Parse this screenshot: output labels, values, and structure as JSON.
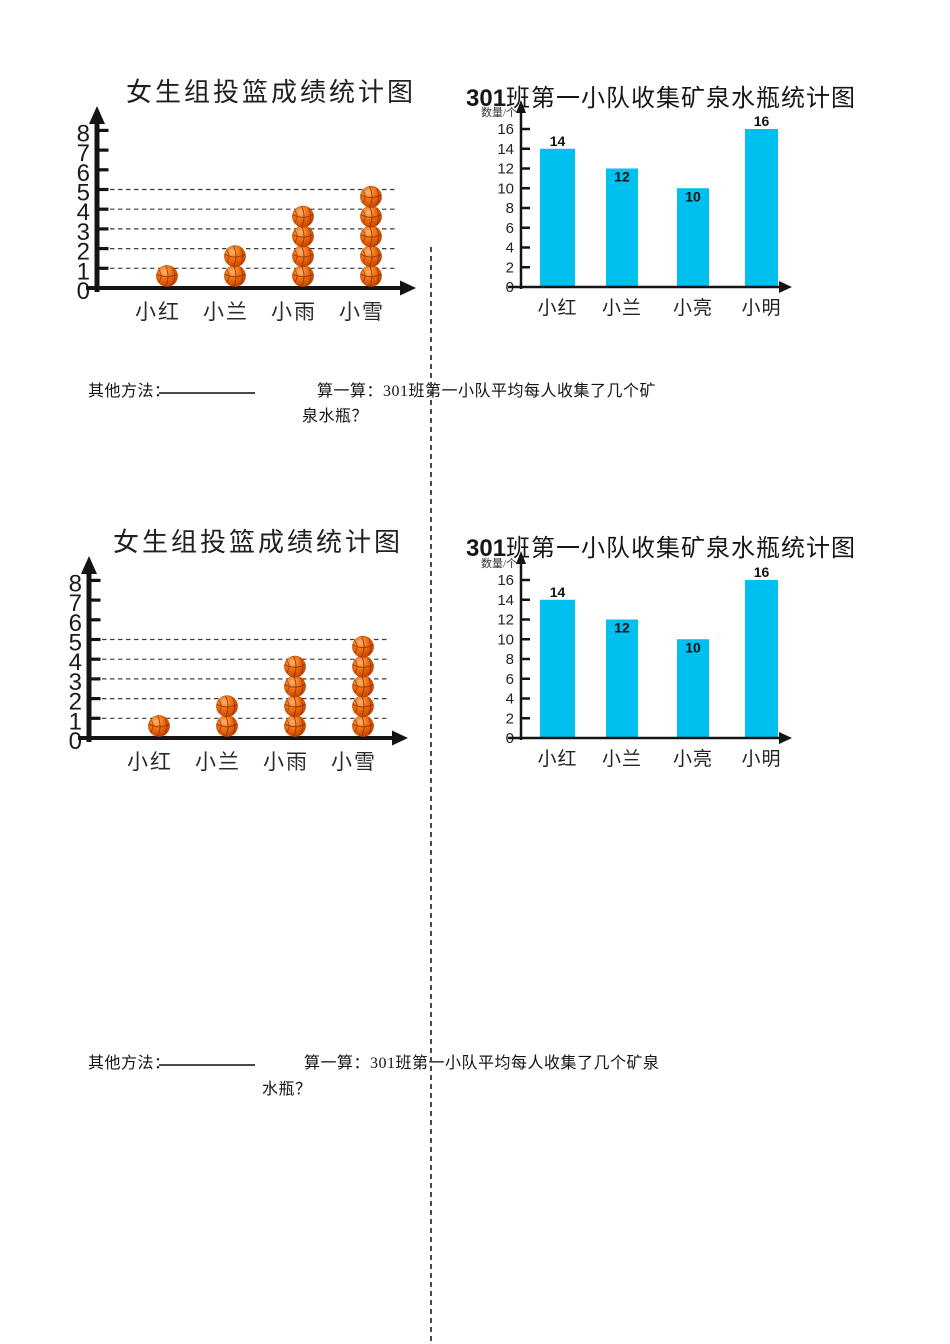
{
  "page": {
    "background": "#ffffff",
    "cut_line_color": "#4a4a4a"
  },
  "sections": [
    {
      "pictograph": {
        "title": "女生组投篮成绩统计图",
        "y_ticks": [
          "8",
          "7",
          "6",
          "5",
          "4",
          "3",
          "2",
          "1",
          "0"
        ],
        "gridline_levels": [
          1,
          2,
          3,
          4,
          5
        ],
        "categories": [
          "小红",
          "小兰",
          "小雨",
          "小雪"
        ],
        "values": [
          1,
          2,
          4,
          5
        ],
        "ball_color": "#e8600f"
      },
      "barchart": {
        "title_prefix": "301",
        "title_rest": "班第一小队收集矿泉水瓶统计图",
        "y_axis_label": "数量/个",
        "y_ticks": [
          "16",
          "14",
          "12",
          "10",
          "8",
          "6",
          "4",
          "2",
          "0"
        ],
        "categories": [
          "小红",
          "小兰",
          "小亮",
          "小明"
        ],
        "values": [
          14,
          12,
          10,
          16
        ],
        "value_label_placement": [
          "above",
          "inside",
          "inside",
          "above"
        ],
        "bar_color": "#00c0f0"
      },
      "question": {
        "other_method_label": "其他方法：",
        "calc_line1": "算一算：301班第一小队平均每人收集了几个矿",
        "calc_line2": "泉水瓶？"
      }
    },
    {
      "pictograph": {
        "title": "女生组投篮成绩统计图",
        "y_ticks": [
          "8",
          "7",
          "6",
          "5",
          "4",
          "3",
          "2",
          "1",
          "0"
        ],
        "gridline_levels": [
          1,
          2,
          3,
          4,
          5
        ],
        "categories": [
          "小红",
          "小兰",
          "小雨",
          "小雪"
        ],
        "values": [
          1,
          2,
          4,
          5
        ],
        "ball_color": "#e8600f"
      },
      "barchart": {
        "title_prefix": "301",
        "title_rest": "班第一小队收集矿泉水瓶统计图",
        "y_axis_label": "数量/个",
        "y_ticks": [
          "16",
          "14",
          "12",
          "10",
          "8",
          "6",
          "4",
          "2",
          "0"
        ],
        "categories": [
          "小红",
          "小兰",
          "小亮",
          "小明"
        ],
        "values": [
          14,
          12,
          10,
          16
        ],
        "value_label_placement": [
          "above",
          "inside",
          "inside",
          "above"
        ],
        "bar_color": "#00c0f0"
      },
      "question": {
        "other_method_label": "其他方法：",
        "calc_line1": "算一算：301班第一小队平均每人收集了几个矿泉",
        "calc_line2": "水瓶？"
      }
    }
  ],
  "chart_data": [
    {
      "type": "bar",
      "subtype": "pictograph-basketballs",
      "section": 1,
      "title": "女生组投篮成绩统计图",
      "categories": [
        "小红",
        "小兰",
        "小雨",
        "小雪"
      ],
      "values": [
        1,
        2,
        4,
        5
      ],
      "xlabel": "",
      "ylabel": "",
      "ylim": [
        0,
        8
      ],
      "ytick_step": 1,
      "grid": "dashed horizontal lines at levels 1-5",
      "symbol": "basketball",
      "symbol_unit": 1,
      "legend": "none"
    },
    {
      "type": "bar",
      "section": 1,
      "title": "301班第一小队收集矿泉水瓶统计图",
      "categories": [
        "小红",
        "小兰",
        "小亮",
        "小明"
      ],
      "values": [
        14,
        12,
        10,
        16
      ],
      "xlabel": "",
      "ylabel": "数量/个",
      "ylim": [
        0,
        16
      ],
      "ytick_step": 2,
      "grid": "off",
      "bar_color": "#00c0f0",
      "data_labels": [
        14,
        12,
        10,
        16
      ],
      "legend": "none"
    },
    {
      "type": "bar",
      "subtype": "pictograph-basketballs",
      "section": 2,
      "title": "女生组投篮成绩统计图",
      "categories": [
        "小红",
        "小兰",
        "小雨",
        "小雪"
      ],
      "values": [
        1,
        2,
        4,
        5
      ],
      "xlabel": "",
      "ylabel": "",
      "ylim": [
        0,
        8
      ],
      "ytick_step": 1,
      "grid": "dashed horizontal lines at levels 1-5",
      "symbol": "basketball",
      "symbol_unit": 1,
      "legend": "none"
    },
    {
      "type": "bar",
      "section": 2,
      "title": "301班第一小队收集矿泉水瓶统计图",
      "categories": [
        "小红",
        "小兰",
        "小亮",
        "小明"
      ],
      "values": [
        14,
        12,
        10,
        16
      ],
      "xlabel": "",
      "ylabel": "数量/个",
      "ylim": [
        0,
        16
      ],
      "ytick_step": 2,
      "grid": "off",
      "bar_color": "#00c0f0",
      "data_labels": [
        14,
        12,
        10,
        16
      ],
      "legend": "none"
    }
  ]
}
